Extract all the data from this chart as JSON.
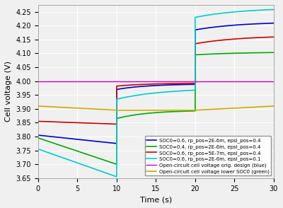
{
  "title": "",
  "xlabel": "Time (s)",
  "ylabel": "Cell voltage (V)",
  "xlim": [
    0,
    30
  ],
  "ylim": [
    3.65,
    4.275
  ],
  "yticks": [
    3.65,
    3.7,
    3.75,
    3.8,
    3.85,
    3.9,
    3.95,
    4.0,
    4.05,
    4.1,
    4.15,
    4.2,
    4.25
  ],
  "xticks": [
    0,
    5,
    10,
    15,
    20,
    25,
    30
  ],
  "legend_entries": [
    "SOC0=0.6, rp_pos=2E-6m, epsl_pos=0.4",
    "SOC0=0.4, rp_pos=2E-6m, epsl_pos=0.4",
    "SOC0=0.6, rp_pos=5E-7m, epsl_pos=0.4",
    "SOC0=0.6, rp_pos=2E-6m, epsl_pos=0.1",
    "Open-circuit cell voltage orig. design (blue)",
    "Open-circuit cell voltage lower SOC0 (green)"
  ],
  "line_colors": [
    "#0000cc",
    "#00aa00",
    "#cc0000",
    "#00cccc",
    "#cc00cc",
    "#ccaa00"
  ],
  "background_color": "#f0f0f0",
  "grid_color": "#ffffff",
  "blue_line": {
    "phase1_start": 3.805,
    "phase1_end": 3.775,
    "jump_to": 3.97,
    "phase2_end": 3.99,
    "jump2_to": 4.185,
    "phase3_end": 4.215,
    "tau2": 4.0,
    "tau3": 6.0
  },
  "green_line": {
    "phase1_start": 3.795,
    "phase1_end": 3.7,
    "jump_to": 3.865,
    "phase2_end": 3.895,
    "jump2_to": 4.095,
    "phase3_end": 4.105,
    "tau2": 4.0,
    "tau3": 6.0
  },
  "red_line": {
    "phase1_start": 3.855,
    "phase1_end": 3.845,
    "jump_to": 3.982,
    "phase2_end": 3.993,
    "jump2_to": 4.135,
    "phase3_end": 4.165,
    "tau2": 4.0,
    "tau3": 6.0
  },
  "cyan_line": {
    "phase1_start": 3.755,
    "phase1_end": 3.655,
    "jump_to": 3.935,
    "phase2_end": 3.975,
    "jump2_to": 4.23,
    "phase3_end": 4.265,
    "tau2": 6.0,
    "tau3": 6.0
  },
  "magenta_line": {
    "value": 4.0
  },
  "orange_line": {
    "phase1_start": 3.91,
    "phase1_end": 3.895,
    "phase2_end": 3.895,
    "phase3_end": 3.91
  }
}
